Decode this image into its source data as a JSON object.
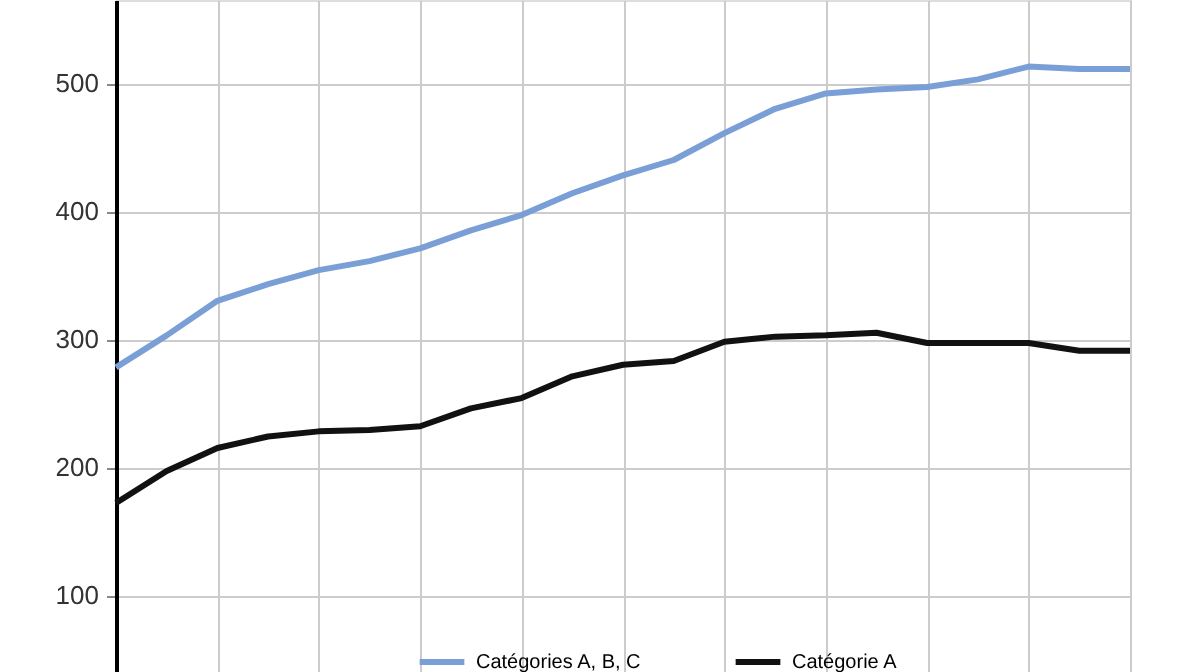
{
  "chart_data": {
    "type": "line",
    "categories": [
      null,
      null,
      null,
      null,
      null,
      null,
      null,
      null,
      null,
      null,
      null,
      null,
      null,
      null,
      null,
      null,
      null,
      null,
      null,
      null,
      null
    ],
    "series": [
      {
        "name": "Catégories A, B, C",
        "color": "#7a9fd6",
        "values": [
          278,
          303,
          330,
          343,
          354,
          361,
          371,
          385,
          397,
          414,
          428,
          440,
          461,
          480,
          492,
          495,
          497,
          503,
          513,
          511,
          511
        ]
      },
      {
        "name": "Catégorie A",
        "color": "#111111",
        "values": [
          172,
          197,
          215,
          224,
          228,
          229,
          232,
          246,
          254,
          271,
          280,
          283,
          298,
          302,
          303,
          305,
          297,
          297,
          297,
          291,
          291
        ]
      }
    ],
    "ylim": [
      40,
      565
    ],
    "yticks": [
      100,
      200,
      300,
      400,
      500
    ],
    "grid": true,
    "legend": "bottom",
    "marker": "none",
    "line_style": "solid",
    "tick_labels": "y"
  }
}
